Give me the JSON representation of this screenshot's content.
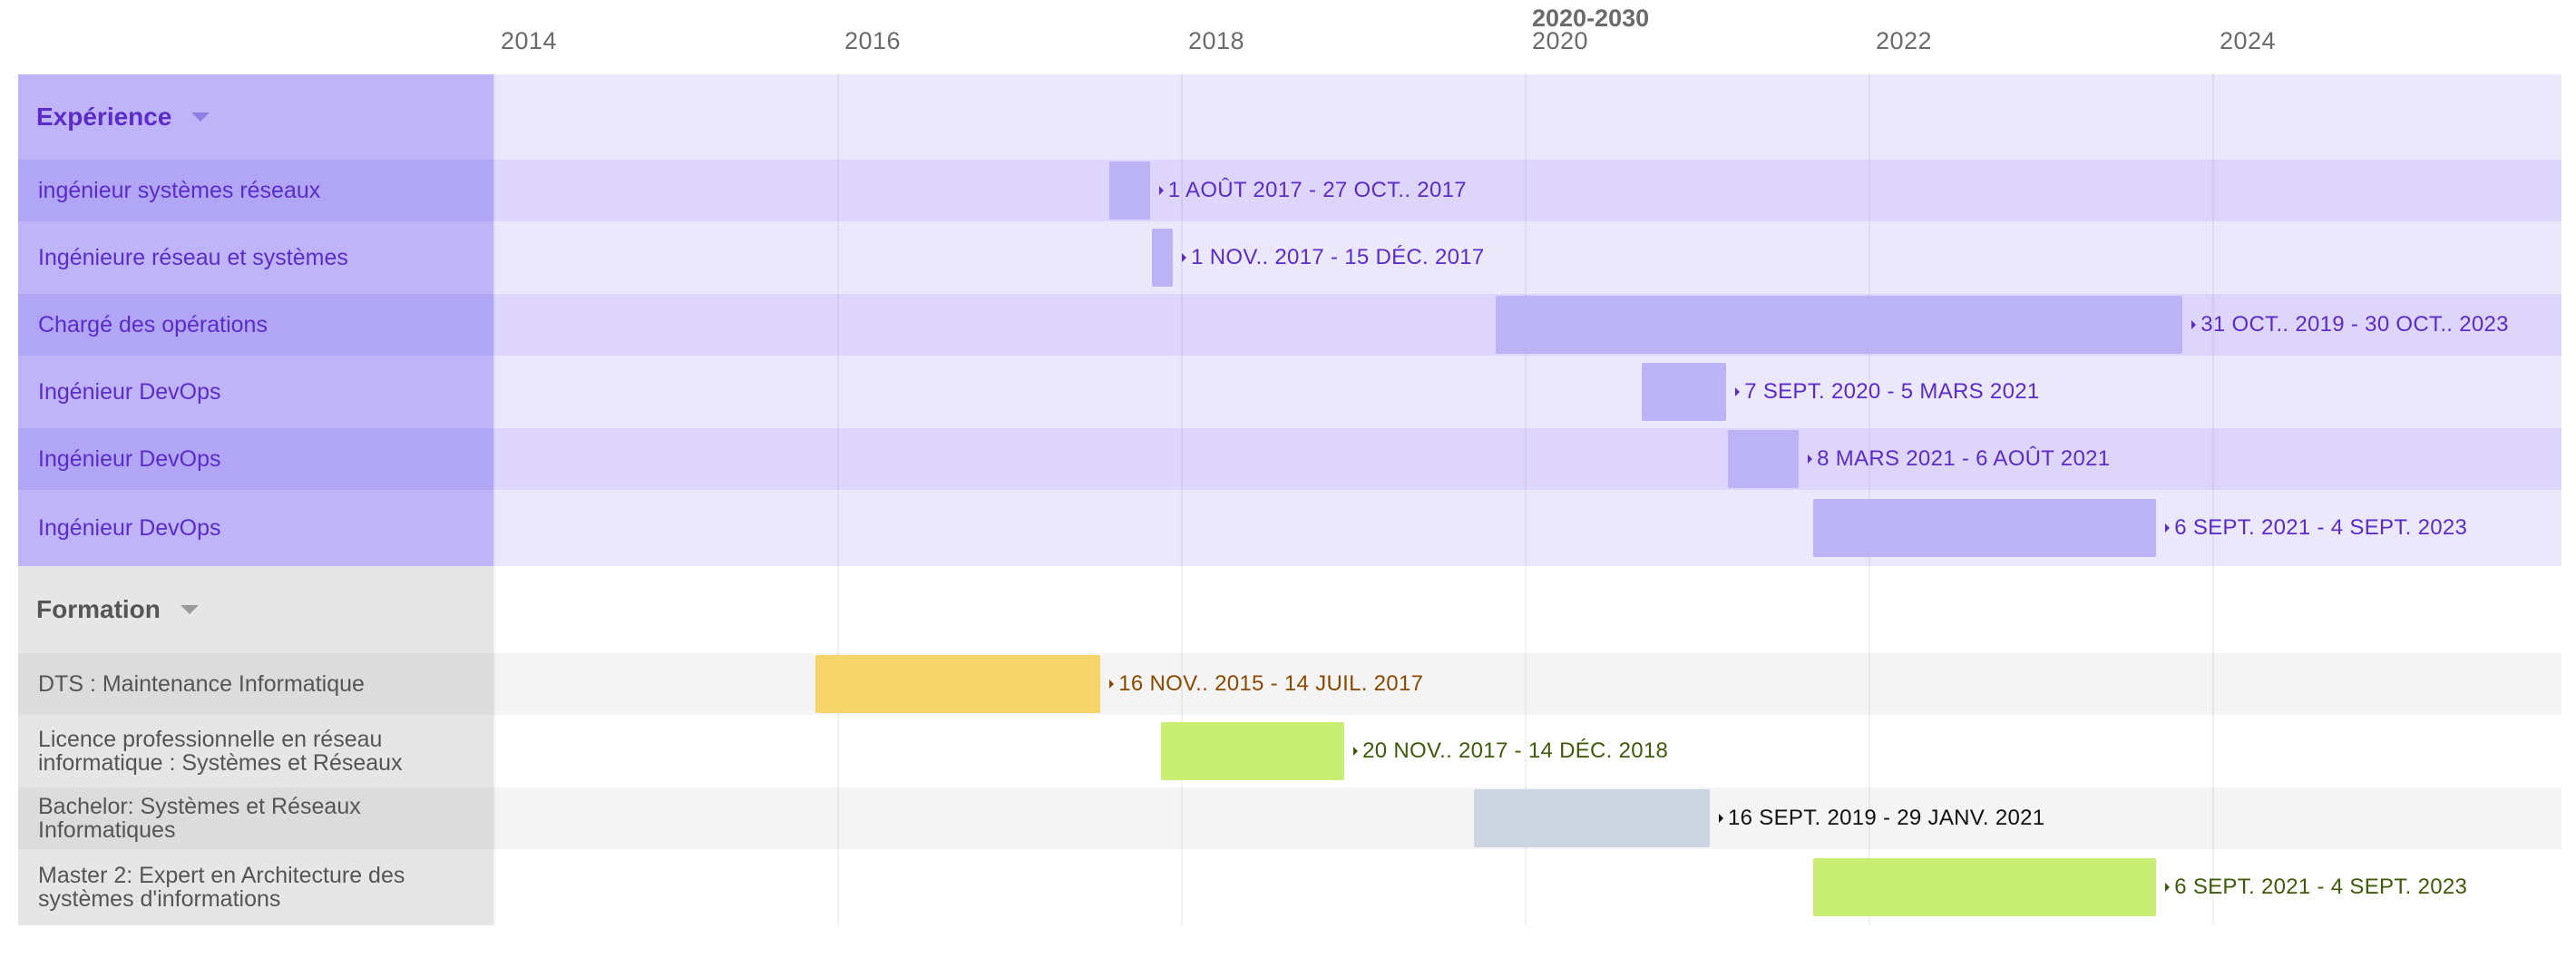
{
  "axis": {
    "era_label": "2020-2030",
    "ticks": [
      "2014",
      "2016",
      "2018",
      "2020",
      "2022",
      "2024"
    ]
  },
  "colors": {
    "exp_left": "#bfb4f8",
    "exp_left_alt": "#b1a5f5",
    "exp_header_bg": "#ebe8fc",
    "exp_row_a": "#ddd6fa",
    "exp_row_b": "#ebe8fc",
    "exp_text": "#5b2cc9",
    "exp_bar": "#bcb2f6",
    "edu_left": "#e6e6e6",
    "edu_left_alt": "#dcdcdc",
    "edu_row_a": "#f4f4f4",
    "edu_row_b": "#ffffff",
    "edu_text": "#555555"
  },
  "chart_data": {
    "type": "gantt",
    "x_unit": "year",
    "xlim": [
      2014,
      2026
    ],
    "groups": [
      {
        "name": "Expérience",
        "tasks": [
          {
            "label": "ingénieur systèmes réseaux",
            "start": "2017-08-01",
            "end": "2017-10-27",
            "date_text": "1 AOÛT 2017 - 27 OCT.. 2017",
            "bar_color": "#bcb2f6",
            "text_color": "#5b2cc9"
          },
          {
            "label": "Ingénieure réseau et systèmes",
            "start": "2017-11-01",
            "end": "2017-12-15",
            "date_text": "1 NOV.. 2017 - 15 DÉC. 2017",
            "bar_color": "#bcb2f6",
            "text_color": "#5b2cc9"
          },
          {
            "label": "Chargé des opérations",
            "start": "2019-10-31",
            "end": "2023-10-30",
            "date_text": "31 OCT.. 2019 - 30 OCT.. 2023",
            "bar_color": "#bcb2f6",
            "text_color": "#5b2cc9"
          },
          {
            "label": "Ingénieur DevOps",
            "start": "2020-09-07",
            "end": "2021-03-05",
            "date_text": "7 SEPT. 2020 - 5 MARS 2021",
            "bar_color": "#bcb2f6",
            "text_color": "#5b2cc9"
          },
          {
            "label": "Ingénieur DevOps",
            "start": "2021-03-08",
            "end": "2021-08-06",
            "date_text": "8 MARS 2021 - 6 AOÛT 2021",
            "bar_color": "#bcb2f6",
            "text_color": "#5b2cc9"
          },
          {
            "label": "Ingénieur DevOps",
            "start": "2021-09-06",
            "end": "2023-09-04",
            "date_text": "6 SEPT. 2021 - 4 SEPT. 2023",
            "bar_color": "#bcb2f6",
            "text_color": "#5b2cc9"
          }
        ]
      },
      {
        "name": "Formation",
        "tasks": [
          {
            "label": "DTS : Maintenance Informatique",
            "start": "2015-11-16",
            "end": "2017-07-14",
            "date_text": "16 NOV.. 2015 - 14 JUIL. 2017",
            "bar_color": "#f5d469",
            "text_color": "#8a4a00"
          },
          {
            "label": "Licence professionnelle en réseau informatique : Systèmes et Réseaux",
            "start": "2017-11-20",
            "end": "2018-12-14",
            "date_text": "20 NOV.. 2017 - 14 DÉC. 2018",
            "bar_color": "#c8ef74",
            "text_color": "#3f5a0a"
          },
          {
            "label": "Bachelor: Systèmes et Réseaux Informatiques",
            "start": "2019-09-16",
            "end": "2021-01-29",
            "date_text": "16 SEPT. 2019 - 29 JANV. 2021",
            "bar_color": "#cdd5e0",
            "text_color": "#111111"
          },
          {
            "label": "Master 2: Expert en Architecture des systèmes d'informations",
            "start": "2021-09-06",
            "end": "2023-09-04",
            "date_text": "6 SEPT. 2021 - 4 SEPT. 2023",
            "bar_color": "#c8ef74",
            "text_color": "#3f5a0a"
          }
        ]
      }
    ]
  }
}
